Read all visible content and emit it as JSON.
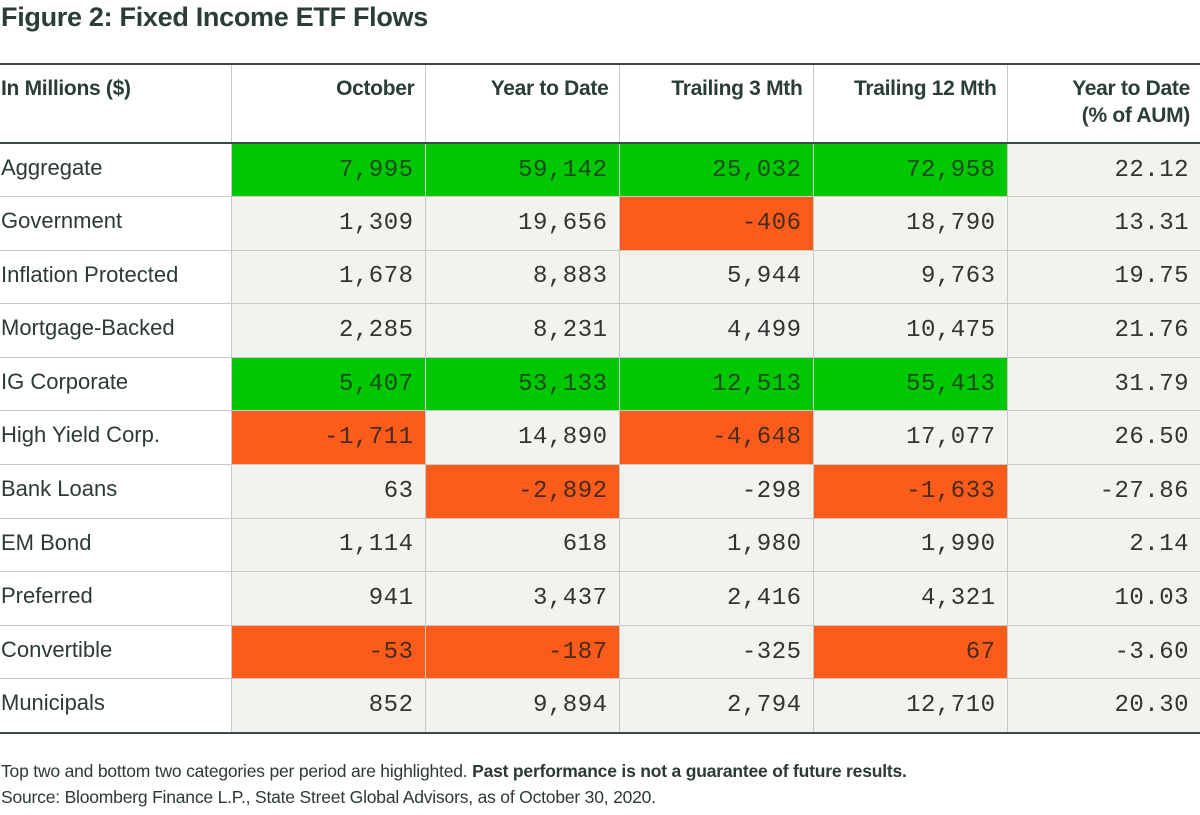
{
  "title": "Figure 2: Fixed Income ETF Flows",
  "colors": {
    "top_highlight": "#00c800",
    "bottom_highlight": "#fb5c1b",
    "cell_bg": "#f2f2ee",
    "text": "#2a3d37"
  },
  "chart_data": {
    "type": "table",
    "title": "Figure 2: Fixed Income ETF Flows",
    "header_label": "In Millions ($)",
    "columns": [
      "October",
      "Year to Date",
      "Trailing 3 Mth",
      "Trailing 12 Mth",
      "Year to Date (% of AUM)"
    ],
    "column_lines": [
      [
        "October"
      ],
      [
        "Year to Date"
      ],
      [
        "Trailing 3 Mth"
      ],
      [
        "Trailing 12 Mth"
      ],
      [
        "Year to Date",
        "(% of AUM)"
      ]
    ],
    "rows": [
      {
        "label": "Aggregate",
        "values": [
          "7,995",
          "59,142",
          "25,032",
          "72,958",
          "22.12"
        ],
        "highlight": [
          "top",
          "top",
          "top",
          "top",
          ""
        ]
      },
      {
        "label": "Government",
        "values": [
          "1,309",
          "19,656",
          "-406",
          "18,790",
          "13.31"
        ],
        "highlight": [
          "",
          "",
          "bottom",
          "",
          ""
        ]
      },
      {
        "label": "Inflation Protected",
        "values": [
          "1,678",
          "8,883",
          "5,944",
          "9,763",
          "19.75"
        ],
        "highlight": [
          "",
          "",
          "",
          "",
          ""
        ]
      },
      {
        "label": "Mortgage-Backed",
        "values": [
          "2,285",
          "8,231",
          "4,499",
          "10,475",
          "21.76"
        ],
        "highlight": [
          "",
          "",
          "",
          "",
          ""
        ]
      },
      {
        "label": "IG Corporate",
        "values": [
          "5,407",
          "53,133",
          "12,513",
          "55,413",
          "31.79"
        ],
        "highlight": [
          "top",
          "top",
          "top",
          "top",
          ""
        ]
      },
      {
        "label": "High Yield Corp.",
        "values": [
          "-1,711",
          "14,890",
          "-4,648",
          "17,077",
          "26.50"
        ],
        "highlight": [
          "bottom",
          "",
          "bottom",
          "",
          ""
        ]
      },
      {
        "label": "Bank Loans",
        "values": [
          "63",
          "-2,892",
          "-298",
          "-1,633",
          "-27.86"
        ],
        "highlight": [
          "",
          "bottom",
          "",
          "bottom",
          ""
        ]
      },
      {
        "label": "EM Bond",
        "values": [
          "1,114",
          "618",
          "1,980",
          "1,990",
          "2.14"
        ],
        "highlight": [
          "",
          "",
          "",
          "",
          ""
        ]
      },
      {
        "label": "Preferred",
        "values": [
          "941",
          "3,437",
          "2,416",
          "4,321",
          "10.03"
        ],
        "highlight": [
          "",
          "",
          "",
          "",
          ""
        ]
      },
      {
        "label": "Convertible",
        "values": [
          "-53",
          "-187",
          "-325",
          "67",
          "-3.60"
        ],
        "highlight": [
          "bottom",
          "bottom",
          "",
          "bottom",
          ""
        ]
      },
      {
        "label": "Municipals",
        "values": [
          "852",
          "9,894",
          "2,794",
          "12,710",
          "20.30"
        ],
        "highlight": [
          "",
          "",
          "",
          "",
          ""
        ]
      }
    ]
  },
  "footer": {
    "note": "Top two and bottom two categories per period are highlighted.",
    "disclaimer": "Past performance is not a guarantee of future results.",
    "source": "Source: Bloomberg Finance L.P., State Street Global Advisors, as of October 30, 2020."
  }
}
